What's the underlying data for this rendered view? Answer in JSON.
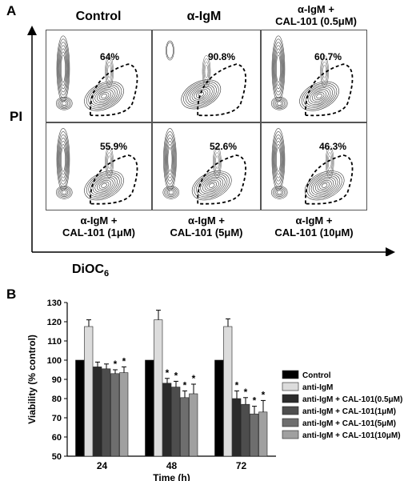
{
  "panel_a": {
    "letter": "A",
    "y_label": "PI",
    "x_label_main": "DiOC",
    "x_label_sub": "6",
    "top_labels": [
      {
        "line1": "Control",
        "line2": ""
      },
      {
        "line1": "α-IgM",
        "line2": ""
      },
      {
        "line1": "α-IgM +",
        "line2": "CAL-101 (0.5μM)"
      }
    ],
    "bottom_labels": [
      {
        "line1": "α-IgM +",
        "line2": "CAL-101 (1μM)"
      },
      {
        "line1": "α-IgM +",
        "line2": "CAL-101 (5μM)"
      },
      {
        "line1": "α-IgM +",
        "line2": "CAL-101 (10μM)"
      }
    ],
    "percentages": [
      "64%",
      "90.8%",
      "60.7%",
      "55.9%",
      "52.6%",
      "46.3%"
    ]
  },
  "panel_b": {
    "letter": "B"
  },
  "chart_data": {
    "type": "bar",
    "title": "",
    "xlabel": "Time (h)",
    "ylabel": "Viability (% control)",
    "ylim": [
      50,
      130
    ],
    "yticks": [
      "50",
      "60",
      "70",
      "80",
      "90",
      "100",
      "110",
      "120",
      "130"
    ],
    "categories": [
      "24",
      "48",
      "72"
    ],
    "grid": false,
    "legend_position": "right",
    "series": [
      {
        "name": "Control",
        "color": "#000000",
        "values": [
          100,
          100,
          100
        ],
        "errors": [
          0,
          0,
          0
        ],
        "sig": [
          false,
          false,
          false
        ]
      },
      {
        "name": "anti-IgM",
        "color": "#dcdcdc",
        "values": [
          117.5,
          121,
          117.5
        ],
        "errors": [
          3.5,
          5,
          4
        ],
        "sig": [
          false,
          false,
          false
        ]
      },
      {
        "name": "anti-IgM + CAL-101(0.5μM)",
        "color": "#2b2b2b",
        "values": [
          96.5,
          88,
          80
        ],
        "errors": [
          2.5,
          2.5,
          4
        ],
        "sig": [
          false,
          true,
          true
        ]
      },
      {
        "name": "anti-IgM + CAL-101(1μM)",
        "color": "#4d4d4d",
        "values": [
          95.5,
          86,
          77
        ],
        "errors": [
          2.5,
          3,
          3.5
        ],
        "sig": [
          false,
          true,
          true
        ]
      },
      {
        "name": "anti-IgM + CAL-101(5μM)",
        "color": "#6e6e6e",
        "values": [
          93,
          80.5,
          72
        ],
        "errors": [
          2,
          3.5,
          4
        ],
        "sig": [
          true,
          true,
          true
        ]
      },
      {
        "name": "anti-IgM + CAL-101(10μM)",
        "color": "#a0a0a0",
        "values": [
          93.5,
          82.5,
          73
        ],
        "errors": [
          3,
          5,
          6
        ],
        "sig": [
          true,
          true,
          true
        ]
      }
    ],
    "sig_marker": "*"
  }
}
